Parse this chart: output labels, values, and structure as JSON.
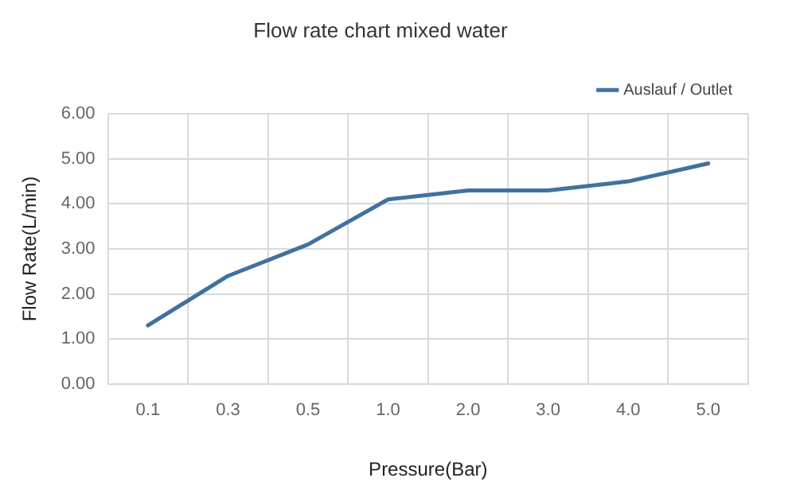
{
  "chart_data": {
    "type": "line",
    "title": "Flow rate chart mixed water",
    "xlabel": "Pressure(Bar)",
    "ylabel": "Flow Rate(L/min)",
    "categories": [
      "0.1",
      "0.3",
      "0.5",
      "1.0",
      "2.0",
      "3.0",
      "4.0",
      "5.0"
    ],
    "series": [
      {
        "name": "Auslauf / Outlet",
        "color": "#41729f",
        "values": [
          1.3,
          2.4,
          3.1,
          4.1,
          4.3,
          4.3,
          4.5,
          4.9
        ]
      }
    ],
    "ylim": [
      0,
      6
    ],
    "yticks": [
      {
        "value": 0,
        "label": "0.00"
      },
      {
        "value": 1,
        "label": "1.00"
      },
      {
        "value": 2,
        "label": "2.00"
      },
      {
        "value": 3,
        "label": "3.00"
      },
      {
        "value": 4,
        "label": "4.00"
      },
      {
        "value": 5,
        "label": "5.00"
      },
      {
        "value": 6,
        "label": "6.00"
      }
    ],
    "grid": true,
    "legend": "top right",
    "marker": "none",
    "line_style": "solid"
  }
}
